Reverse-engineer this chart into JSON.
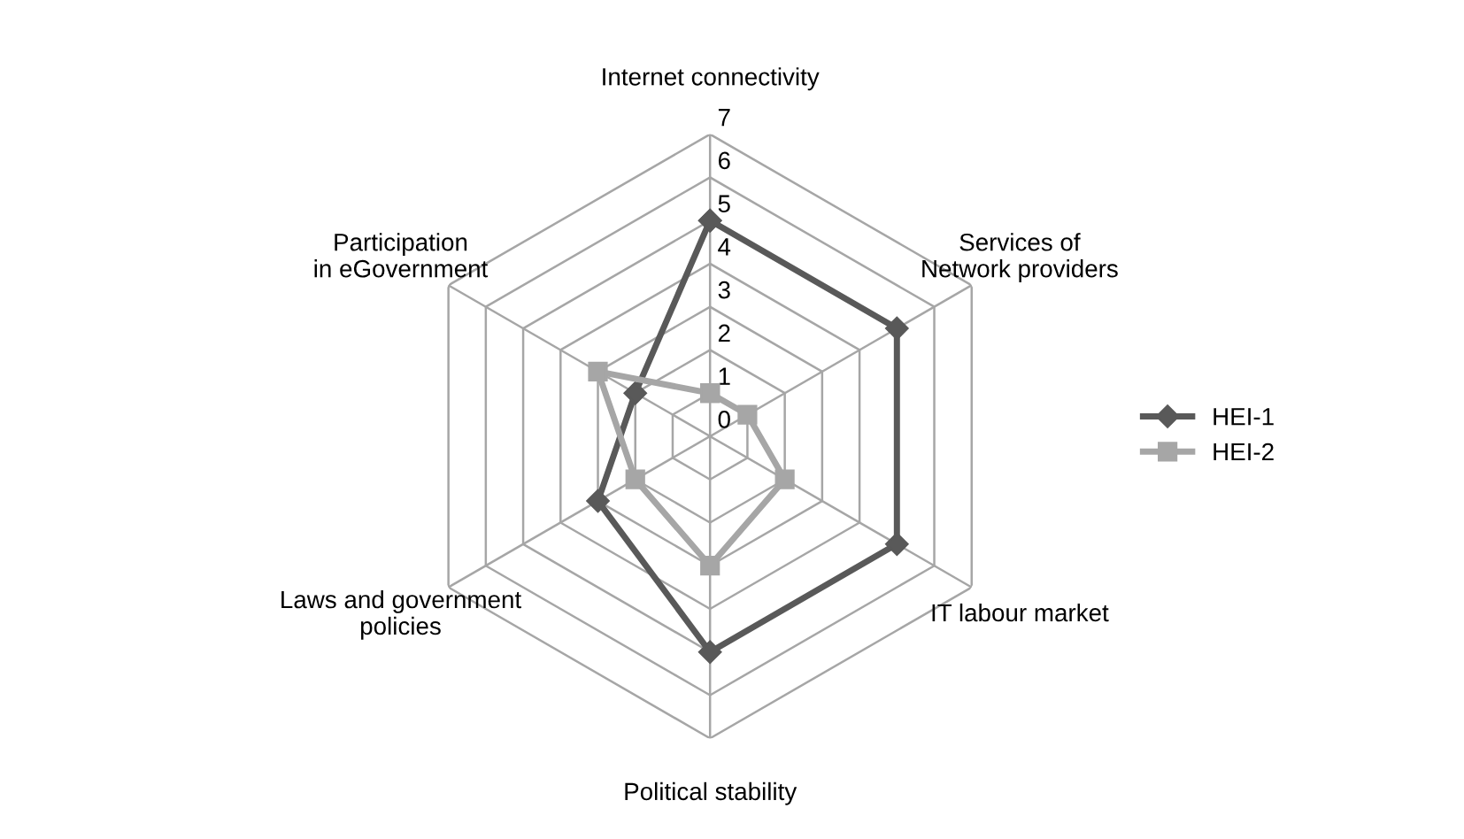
{
  "chart_data": {
    "type": "radar",
    "categories": [
      "Internet connectivity",
      "Services of Network providers",
      "IT labour market",
      "Political stability",
      "Laws and government policies",
      "Participation in eGovernment"
    ],
    "series": [
      {
        "name": "HEI-1",
        "color": "#595959",
        "marker": "diamond",
        "values": [
          5,
          5,
          5,
          5,
          3,
          2
        ]
      },
      {
        "name": "HEI-2",
        "color": "#a6a6a6",
        "marker": "square",
        "values": [
          1,
          1,
          2,
          3,
          2,
          3
        ]
      }
    ],
    "ylim": [
      0,
      7
    ],
    "yticks": [
      0,
      1,
      2,
      3,
      4,
      5,
      6,
      7
    ],
    "grid": true,
    "legend": "right"
  }
}
